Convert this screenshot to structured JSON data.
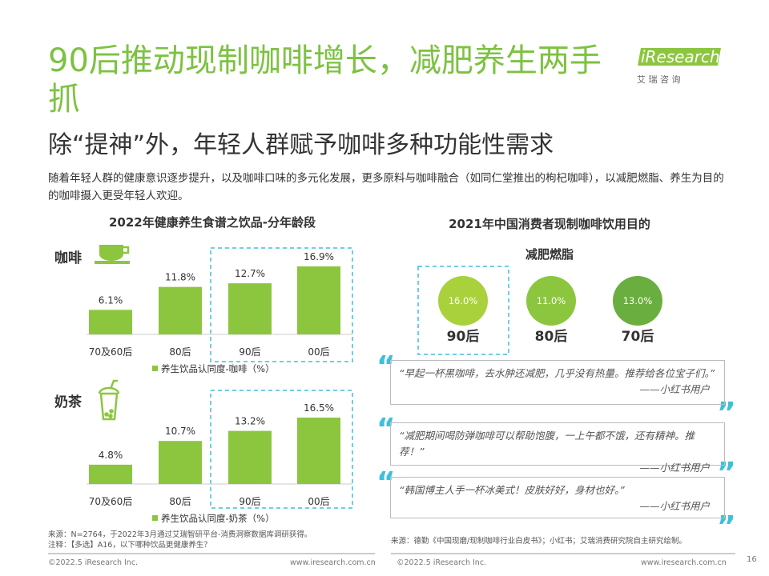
{
  "header": {
    "title": "90后推动现制咖啡增长，减肥养生两手抓",
    "subtitle": "除“提神”外，年轻人群赋予咖啡多种功能性需求",
    "description": "随着年轻人群的健康意识逐步提升，以及咖啡口味的多元化发展，更多原料与咖啡融合（如同仁堂推出的枸杞咖啡），以减肥燃脂、养生为目的的咖啡摄入更受年轻人欢迎。"
  },
  "logo": {
    "brand": "iResearch",
    "sub": "艾 瑞 咨 询"
  },
  "left_chart": {
    "title": "2022年健康养生食谱之饮品-分年龄段",
    "color": "#8cc63f",
    "panels": [
      {
        "label": "咖啡",
        "categories": [
          "70及60后",
          "80后",
          "90后",
          "00后"
        ],
        "values": [
          6.1,
          11.8,
          12.7,
          16.9
        ],
        "value_labels": [
          "6.1%",
          "11.8%",
          "12.7%",
          "16.9%"
        ],
        "legend": "养生饮品认同度-咖啡（%）"
      },
      {
        "label": "奶茶",
        "categories": [
          "70及60后",
          "80后",
          "90后",
          "00后"
        ],
        "values": [
          4.8,
          10.7,
          13.2,
          16.5
        ],
        "value_labels": [
          "4.8%",
          "10.7%",
          "13.2%",
          "16.5%"
        ],
        "legend": "养生饮品认同度-奶茶（%）"
      }
    ]
  },
  "right_chart": {
    "title": "2021年中国消费者现制咖啡饮用目的",
    "subtitle": "减肥燃脂",
    "circles": [
      {
        "label": "90后",
        "value": 16.0,
        "value_label": "16.0%",
        "color": "#a9d13c"
      },
      {
        "label": "80后",
        "value": 11.0,
        "value_label": "11.0%",
        "color": "#8cc63f"
      },
      {
        "label": "70后",
        "value": 13.0,
        "value_label": "13.0%",
        "color": "#6aae3f"
      }
    ]
  },
  "quotes": [
    {
      "text": "“早起一杯黑咖啡，去水肿还减肥，几乎没有热量。推荐给各位宝子们。”",
      "source": "——小红书用户"
    },
    {
      "text": "“减肥期间喝防弹咖啡可以帮助饱腹，一上午都不饿，还有精神。推荐！”",
      "source": "——小红书用户"
    },
    {
      "text": "“韩国博主人手一杯冰美式！皮肤好好，身材也好。”",
      "source": "——小红书用户"
    }
  ],
  "footer": {
    "left_source": "来源：N=2764，于2022年3月通过艾瑞智研平台-消费洞察数据库调研获得。",
    "left_note": "注释：【多选】A16，以下哪种饮品更健康养生？",
    "right_source": "来源：德勤《中国现磨/现制咖啡行业白皮书》；小红书；艾瑞消费研究院自主研究绘制。",
    "copyright": "©2022.5 iResearch Inc.",
    "url": "www.iresearch.com.cn",
    "page": "16"
  }
}
